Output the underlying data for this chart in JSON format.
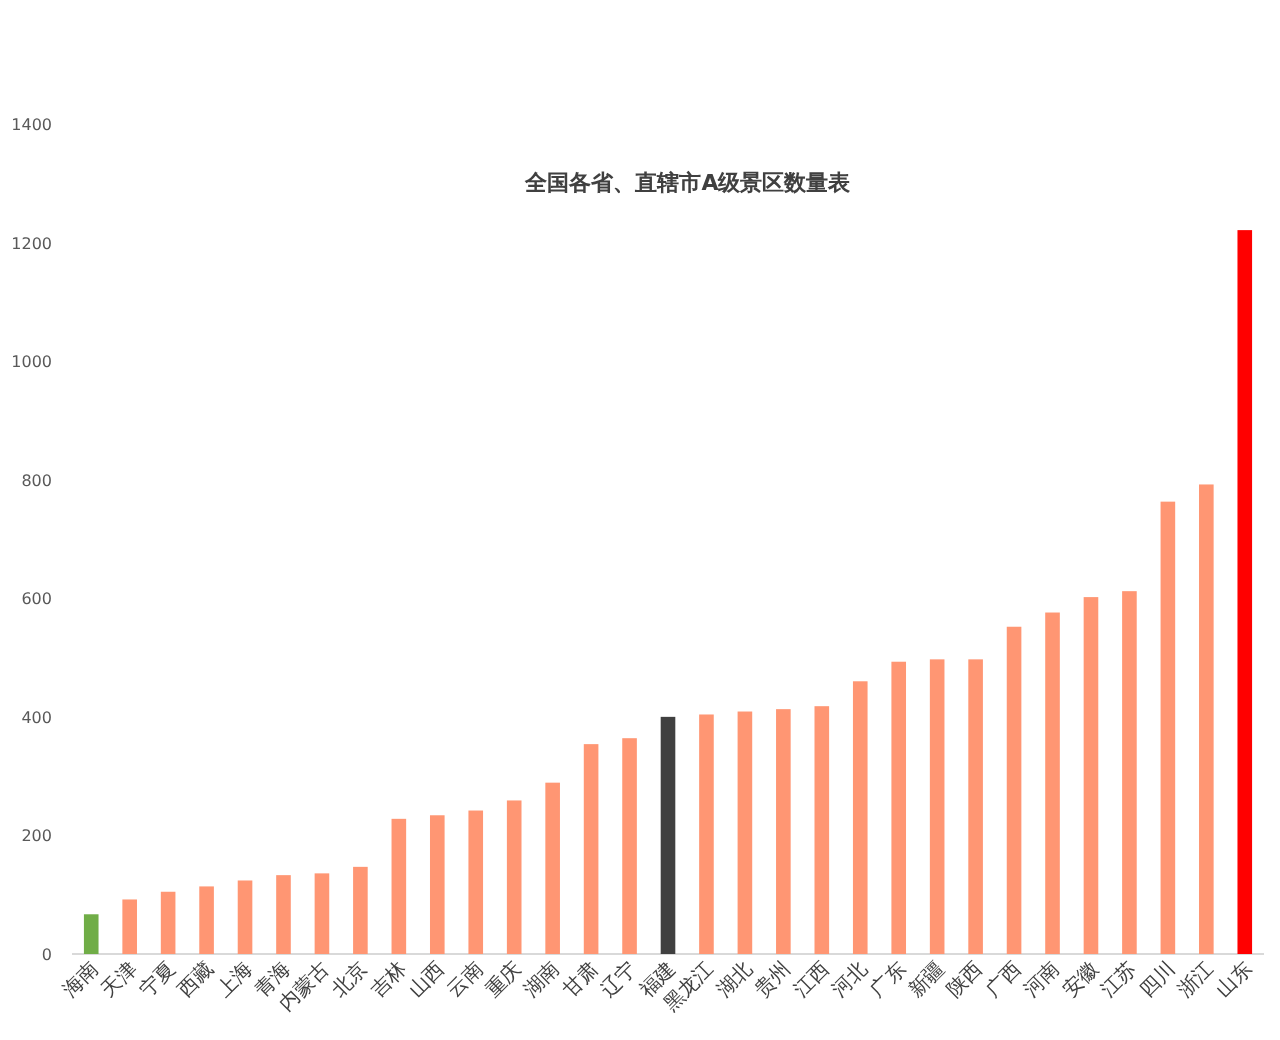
{
  "chart_data": {
    "type": "bar",
    "title": "全国各省、直辖市A级景区数量表",
    "categories": [
      "海南",
      "天津",
      "宁夏",
      "西藏",
      "上海",
      "青海",
      "内蒙古",
      "北京",
      "吉林",
      "山西",
      "云南",
      "重庆",
      "湖南",
      "甘肃",
      "辽宁",
      "福建",
      "黑龙江",
      "湖北",
      "贵州",
      "江西",
      "河北",
      "广东",
      "新疆",
      "陕西",
      "广西",
      "河南",
      "安徽",
      "江苏",
      "四川",
      "浙江",
      "山东"
    ],
    "values": [
      67,
      92,
      105,
      114,
      124,
      133,
      136,
      147,
      228,
      234,
      242,
      259,
      289,
      354,
      364,
      400,
      404,
      409,
      413,
      418,
      460,
      493,
      497,
      497,
      552,
      576,
      602,
      612,
      763,
      792,
      1221
    ],
    "colors": [
      "#70ad47",
      "#ff9673",
      "#ff9673",
      "#ff9673",
      "#ff9673",
      "#ff9673",
      "#ff9673",
      "#ff9673",
      "#ff9673",
      "#ff9673",
      "#ff9673",
      "#ff9673",
      "#ff9673",
      "#ff9673",
      "#ff9673",
      "#404040",
      "#ff9673",
      "#ff9673",
      "#ff9673",
      "#ff9673",
      "#ff9673",
      "#ff9673",
      "#ff9673",
      "#ff9673",
      "#ff9673",
      "#ff9673",
      "#ff9673",
      "#ff9673",
      "#ff9673",
      "#ff9673",
      "#ff0000"
    ],
    "ylim": [
      0,
      1400
    ],
    "yticks": [
      0,
      200,
      400,
      600,
      800,
      1000,
      1200,
      1400
    ],
    "grid": false
  }
}
